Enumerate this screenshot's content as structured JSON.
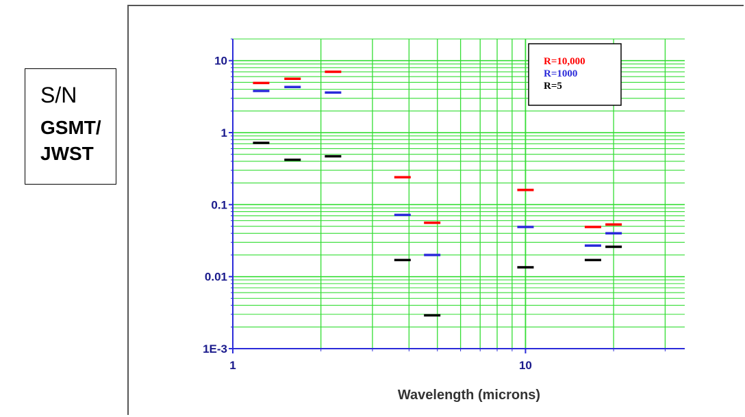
{
  "side_label": {
    "line1": "S/N",
    "line2": "GSMT/",
    "line3": "JWST"
  },
  "chart_data": {
    "type": "scatter",
    "marker": "horizontal-dash",
    "xlabel": "Wavelength (microns)",
    "ylabel": "",
    "xscale": "log",
    "yscale": "log",
    "xlim": [
      1,
      35
    ],
    "ylim": [
      0.001,
      20
    ],
    "x_ticks": [
      {
        "value": 1,
        "label": "1"
      },
      {
        "value": 10,
        "label": "10"
      }
    ],
    "y_ticks": [
      {
        "value": 10,
        "label": "10"
      },
      {
        "value": 1,
        "label": "1"
      },
      {
        "value": 0.1,
        "label": "0.1"
      },
      {
        "value": 0.01,
        "label": "0.01"
      },
      {
        "value": 0.001,
        "label": "1E-3"
      }
    ],
    "grid": true,
    "legend_position": "top-right",
    "series": [
      {
        "name": "R=10,000",
        "color": "#ff0000",
        "points": [
          {
            "x": 1.25,
            "y": 4.9
          },
          {
            "x": 1.6,
            "y": 5.6
          },
          {
            "x": 2.2,
            "y": 7.0
          },
          {
            "x": 3.8,
            "y": 0.24
          },
          {
            "x": 4.8,
            "y": 0.056
          },
          {
            "x": 10,
            "y": 0.16
          },
          {
            "x": 17,
            "y": 0.049
          },
          {
            "x": 20,
            "y": 0.053
          }
        ]
      },
      {
        "name": "R=1000",
        "color": "#2a2ad9",
        "points": [
          {
            "x": 1.25,
            "y": 3.8
          },
          {
            "x": 1.6,
            "y": 4.3
          },
          {
            "x": 2.2,
            "y": 3.6
          },
          {
            "x": 3.8,
            "y": 0.072
          },
          {
            "x": 4.8,
            "y": 0.02
          },
          {
            "x": 10,
            "y": 0.049
          },
          {
            "x": 17,
            "y": 0.027
          },
          {
            "x": 20,
            "y": 0.04
          }
        ]
      },
      {
        "name": "R=5",
        "color": "#000000",
        "points": [
          {
            "x": 1.25,
            "y": 0.72
          },
          {
            "x": 1.6,
            "y": 0.42
          },
          {
            "x": 2.2,
            "y": 0.47
          },
          {
            "x": 3.8,
            "y": 0.017
          },
          {
            "x": 4.8,
            "y": 0.0029
          },
          {
            "x": 10,
            "y": 0.0135
          },
          {
            "x": 17,
            "y": 0.017
          },
          {
            "x": 20,
            "y": 0.026
          }
        ]
      }
    ]
  },
  "colors": {
    "axis": "#2a2ad9",
    "grid": "#33dd33",
    "tick_label": "#1a1a8c"
  }
}
